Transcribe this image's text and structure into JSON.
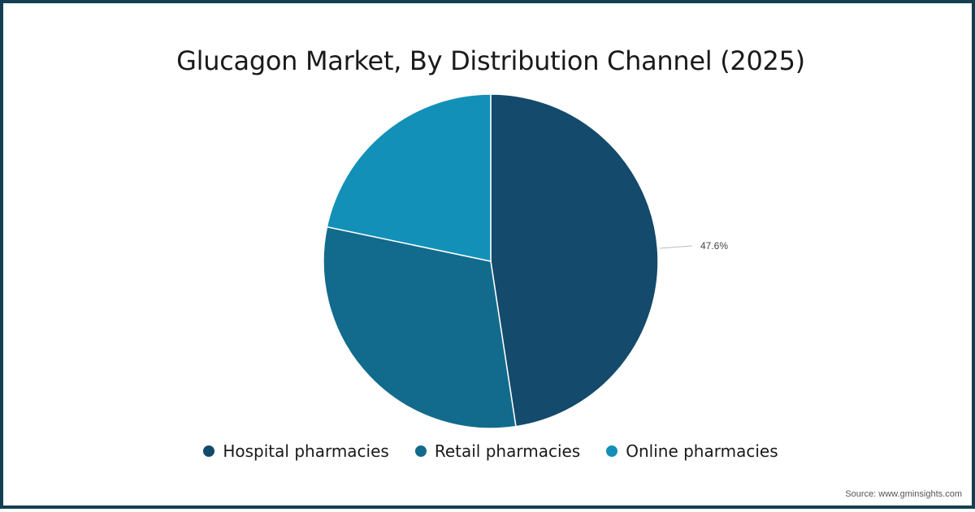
{
  "title": "Glucagon Market, By Distribution Channel (2025)",
  "source": "Source: www.gminsights.com",
  "colors": {
    "border": "#133f52",
    "hospital": "#144a6b",
    "retail": "#126b8c",
    "online": "#1390b8"
  },
  "legend": [
    {
      "label": "Hospital pharmacies",
      "color": "#144a6b"
    },
    {
      "label": "Retail pharmacies",
      "color": "#126b8c"
    },
    {
      "label": "Online pharmacies",
      "color": "#1390b8"
    }
  ],
  "data_label": "47.6%",
  "chart_data": {
    "type": "pie",
    "title": "Glucagon Market, By Distribution Channel (2025)",
    "categories": [
      "Hospital pharmacies",
      "Retail pharmacies",
      "Online pharmacies"
    ],
    "values": [
      47.6,
      30.7,
      21.7
    ],
    "unit": "%",
    "labeled_values": {
      "Hospital pharmacies": "47.6%"
    },
    "legend_position": "bottom",
    "start_angle": "12 o'clock, clockwise"
  }
}
